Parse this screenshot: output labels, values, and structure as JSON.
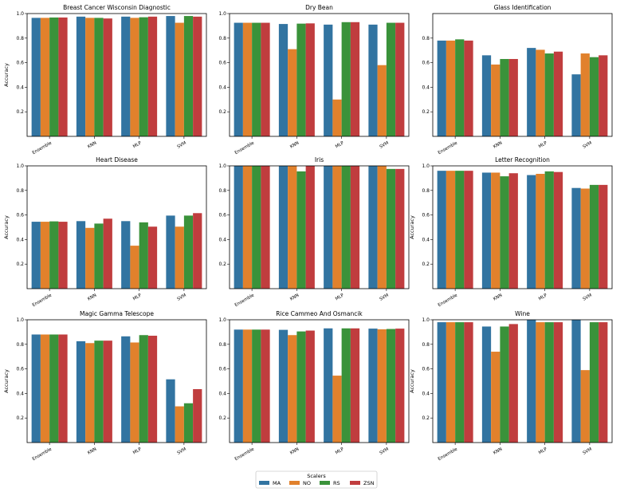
{
  "figure": {
    "legend": {
      "title": "Scalers",
      "placement": "bottom-center"
    },
    "colors": {
      "MA": "#3274a1",
      "NO": "#e1812c",
      "RS": "#3a923a",
      "ZSN": "#c03d3e"
    }
  },
  "chart_data": [
    {
      "type": "bar",
      "title": "Breast Cancer Wisconsin Diagnostic",
      "ylabel": "Accuracy",
      "ylim": [
        0,
        1.0
      ],
      "yticks": [
        "0.2",
        "0.4",
        "0.6",
        "0.8",
        "1.0"
      ],
      "categories": [
        "Ensemble",
        "KNN",
        "MLP",
        "SVM"
      ],
      "series": [
        {
          "name": "MA",
          "values": [
            0.965,
            0.975,
            0.975,
            0.98
          ]
        },
        {
          "name": "NO",
          "values": [
            0.965,
            0.965,
            0.965,
            0.925
          ]
        },
        {
          "name": "RS",
          "values": [
            0.968,
            0.965,
            0.97,
            0.98
          ]
        },
        {
          "name": "ZSN",
          "values": [
            0.968,
            0.96,
            0.975,
            0.975
          ]
        }
      ]
    },
    {
      "type": "bar",
      "title": "Dry Bean",
      "ylabel": "",
      "ylim": [
        0,
        1.0
      ],
      "yticks": [
        "0.2",
        "0.4",
        "0.6",
        "0.8",
        "1.0"
      ],
      "categories": [
        "Ensemble",
        "KNN",
        "MLP",
        "SVM"
      ],
      "series": [
        {
          "name": "MA",
          "values": [
            0.925,
            0.915,
            0.91,
            0.91
          ]
        },
        {
          "name": "NO",
          "values": [
            0.925,
            0.71,
            0.3,
            0.58
          ]
        },
        {
          "name": "RS",
          "values": [
            0.925,
            0.918,
            0.93,
            0.925
          ]
        },
        {
          "name": "ZSN",
          "values": [
            0.925,
            0.92,
            0.93,
            0.925
          ]
        }
      ]
    },
    {
      "type": "bar",
      "title": "Glass Identification",
      "ylabel": "",
      "ylim": [
        0,
        1.0
      ],
      "yticks": [
        "0.2",
        "0.4",
        "0.6",
        "0.8"
      ],
      "categories": [
        "Ensemble",
        "KNN",
        "MLP",
        "SVM"
      ],
      "series": [
        {
          "name": "MA",
          "values": [
            0.78,
            0.66,
            0.72,
            0.505
          ]
        },
        {
          "name": "NO",
          "values": [
            0.78,
            0.585,
            0.705,
            0.675
          ]
        },
        {
          "name": "RS",
          "values": [
            0.79,
            0.63,
            0.675,
            0.645
          ]
        },
        {
          "name": "ZSN",
          "values": [
            0.78,
            0.63,
            0.69,
            0.66
          ]
        }
      ]
    },
    {
      "type": "bar",
      "title": "Heart Disease",
      "ylabel": "Accuracy",
      "ylim": [
        0,
        1.0
      ],
      "yticks": [
        "0.2",
        "0.4",
        "0.6",
        "0.8",
        "1.0"
      ],
      "categories": [
        "Ensemble",
        "KNN",
        "MLP",
        "SVM"
      ],
      "series": [
        {
          "name": "MA",
          "values": [
            0.545,
            0.55,
            0.55,
            0.595
          ]
        },
        {
          "name": "NO",
          "values": [
            0.545,
            0.495,
            0.35,
            0.505
          ]
        },
        {
          "name": "RS",
          "values": [
            0.548,
            0.53,
            0.54,
            0.595
          ]
        },
        {
          "name": "ZSN",
          "values": [
            0.545,
            0.57,
            0.505,
            0.615
          ]
        }
      ]
    },
    {
      "type": "bar",
      "title": "Iris",
      "ylabel": "",
      "ylim": [
        0,
        1.0
      ],
      "yticks": [
        "0.2",
        "0.4",
        "0.6",
        "0.8",
        "1.0"
      ],
      "categories": [
        "Ensemble",
        "KNN",
        "MLP",
        "SVM"
      ],
      "series": [
        {
          "name": "MA",
          "values": [
            1.0,
            1.0,
            1.0,
            1.0
          ]
        },
        {
          "name": "NO",
          "values": [
            1.0,
            1.0,
            1.0,
            1.0
          ]
        },
        {
          "name": "RS",
          "values": [
            1.0,
            0.955,
            1.0,
            0.975
          ]
        },
        {
          "name": "ZSN",
          "values": [
            1.0,
            1.0,
            1.0,
            0.975
          ]
        }
      ]
    },
    {
      "type": "bar",
      "title": "Letter Recognition",
      "ylabel": "Accuracy",
      "ylim": [
        0,
        1.0
      ],
      "yticks": [
        "0.2",
        "0.4",
        "0.6",
        "0.8",
        "1.0"
      ],
      "categories": [
        "Ensemble",
        "KNN",
        "MLP",
        "SVM"
      ],
      "series": [
        {
          "name": "MA",
          "values": [
            0.96,
            0.945,
            0.925,
            0.82
          ]
        },
        {
          "name": "NO",
          "values": [
            0.96,
            0.945,
            0.935,
            0.815
          ]
        },
        {
          "name": "RS",
          "values": [
            0.96,
            0.915,
            0.955,
            0.845
          ]
        },
        {
          "name": "ZSN",
          "values": [
            0.96,
            0.94,
            0.95,
            0.845
          ]
        }
      ]
    },
    {
      "type": "bar",
      "title": "Magic Gamma Telescope",
      "ylabel": "Accuracy",
      "ylim": [
        0,
        1.0
      ],
      "yticks": [
        "0.2",
        "0.4",
        "0.6",
        "0.8",
        "1.0"
      ],
      "categories": [
        "Ensemble",
        "KNN",
        "MLP",
        "SVM"
      ],
      "series": [
        {
          "name": "MA",
          "values": [
            0.88,
            0.825,
            0.865,
            0.515
          ]
        },
        {
          "name": "NO",
          "values": [
            0.88,
            0.81,
            0.815,
            0.295
          ]
        },
        {
          "name": "RS",
          "values": [
            0.88,
            0.83,
            0.875,
            0.32
          ]
        },
        {
          "name": "ZSN",
          "values": [
            0.88,
            0.83,
            0.87,
            0.435
          ]
        }
      ]
    },
    {
      "type": "bar",
      "title": "Rice Cammeo And Osmancik",
      "ylabel": "",
      "ylim": [
        0,
        1.0
      ],
      "yticks": [
        "0.2",
        "0.4",
        "0.6",
        "0.8",
        "1.0"
      ],
      "categories": [
        "Ensemble",
        "KNN",
        "MLP",
        "SVM"
      ],
      "series": [
        {
          "name": "MA",
          "values": [
            0.92,
            0.918,
            0.93,
            0.928
          ]
        },
        {
          "name": "NO",
          "values": [
            0.92,
            0.875,
            0.545,
            0.922
          ]
        },
        {
          "name": "RS",
          "values": [
            0.92,
            0.905,
            0.93,
            0.925
          ]
        },
        {
          "name": "ZSN",
          "values": [
            0.92,
            0.912,
            0.93,
            0.928
          ]
        }
      ]
    },
    {
      "type": "bar",
      "title": "Wine",
      "ylabel": "Accuracy",
      "ylim": [
        0,
        1.0
      ],
      "yticks": [
        "0.2",
        "0.4",
        "0.6",
        "0.8",
        "1.0"
      ],
      "categories": [
        "Ensemble",
        "KNN",
        "MLP",
        "SVM"
      ],
      "series": [
        {
          "name": "MA",
          "values": [
            0.98,
            0.945,
            1.0,
            1.0
          ]
        },
        {
          "name": "NO",
          "values": [
            0.98,
            0.74,
            0.98,
            0.59
          ]
        },
        {
          "name": "RS",
          "values": [
            0.98,
            0.945,
            0.98,
            0.98
          ]
        },
        {
          "name": "ZSN",
          "values": [
            0.98,
            0.965,
            0.98,
            0.98
          ]
        }
      ]
    }
  ]
}
